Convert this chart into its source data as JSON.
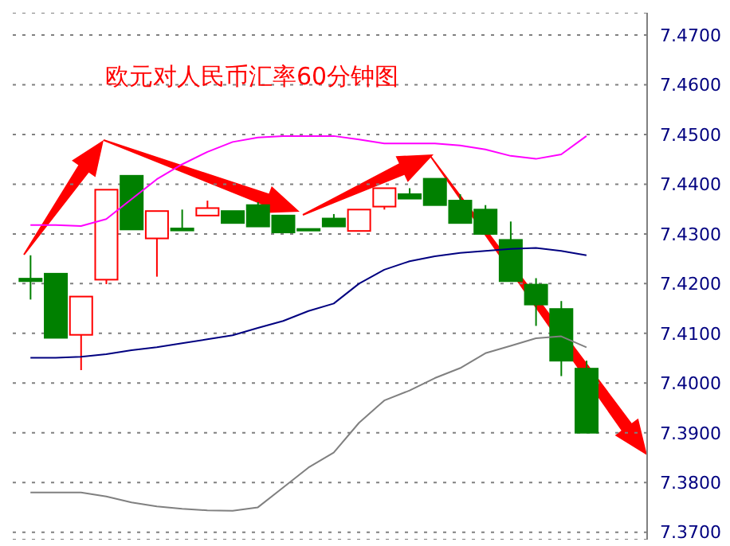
{
  "chart_data": {
    "type": "candlestick",
    "title": "欧元对人民币汇率60分钟图",
    "categories": [
      null,
      null,
      null,
      null,
      null,
      null,
      null,
      null,
      null,
      null,
      null,
      null,
      null,
      null,
      null,
      null,
      null,
      null,
      null,
      null,
      null,
      null,
      null
    ],
    "ohlc": [
      [
        7.421,
        7.4257,
        7.4168,
        7.4205
      ],
      [
        7.422,
        7.422,
        7.4091,
        7.4091
      ],
      [
        7.4097,
        7.4174,
        7.4026,
        7.4174
      ],
      [
        7.4208,
        7.4389,
        7.4199,
        7.4389
      ],
      [
        7.4417,
        7.4417,
        7.4309,
        7.4309
      ],
      [
        7.4291,
        7.4346,
        7.4214,
        7.4346
      ],
      [
        7.4311,
        7.4349,
        7.4307,
        7.4307
      ],
      [
        7.4337,
        7.4367,
        7.4337,
        7.4352
      ],
      [
        7.4346,
        7.4346,
        7.4322,
        7.4322
      ],
      [
        7.4358,
        7.4364,
        7.4315,
        7.4315
      ],
      [
        7.4337,
        7.4337,
        7.4303,
        7.4303
      ],
      [
        7.431,
        7.431,
        7.4308,
        7.4308
      ],
      [
        7.4331,
        7.434,
        7.4315,
        7.4315
      ],
      [
        7.4306,
        7.4349,
        7.4306,
        7.4349
      ],
      [
        7.4355,
        7.4392,
        7.4349,
        7.4392
      ],
      [
        7.438,
        7.4392,
        7.4371,
        7.4371
      ],
      [
        7.4411,
        7.4411,
        7.4358,
        7.4358
      ],
      [
        7.4367,
        7.438,
        7.4322,
        7.4322
      ],
      [
        7.4349,
        7.4358,
        7.43,
        7.43
      ],
      [
        7.4288,
        7.4325,
        7.4205,
        7.4205
      ],
      [
        7.4198,
        7.4211,
        7.4115,
        7.4158
      ],
      [
        7.4149,
        7.4165,
        7.4014,
        7.4045
      ],
      [
        7.4029,
        7.4045,
        7.39,
        7.39
      ]
    ],
    "colors": [
      "#008000",
      "#008000",
      "#ff0000",
      "#ff0000",
      "#008000",
      "#ff0000",
      "#008000",
      "#ff0000",
      "#008000",
      "#008000",
      "#008000",
      "#008000",
      "#008000",
      "#ff0000",
      "#ff0000",
      "#008000",
      "#008000",
      "#008000",
      "#008000",
      "#008000",
      "#008000",
      "#008000",
      "#008000"
    ],
    "series": [
      {
        "type": "line",
        "color": "#ff00ff",
        "values": [
          7.4318,
          7.4318,
          7.4316,
          7.433,
          7.437,
          7.441,
          7.444,
          7.4465,
          7.4485,
          7.4494,
          7.4497,
          7.4497,
          7.4497,
          7.449,
          7.4482,
          7.4482,
          7.4482,
          7.4478,
          7.447,
          7.4457,
          7.4451,
          7.446,
          7.4497
        ]
      },
      {
        "type": "line",
        "color": "#000080",
        "values": [
          7.4051,
          7.4051,
          7.4053,
          7.4058,
          7.4066,
          7.4072,
          7.408,
          7.4088,
          7.4096,
          7.4111,
          7.4125,
          7.4145,
          7.416,
          7.42,
          7.4228,
          7.4245,
          7.4255,
          7.4262,
          7.4266,
          7.427,
          7.4272,
          7.4266,
          7.4257
        ]
      },
      {
        "type": "line",
        "color": "#808080",
        "values": [
          7.378,
          7.378,
          7.378,
          7.3772,
          7.376,
          7.3752,
          7.3747,
          7.3744,
          7.3743,
          7.375,
          7.379,
          7.383,
          7.386,
          7.392,
          7.3965,
          7.3985,
          7.401,
          7.403,
          7.406,
          7.4075,
          7.409,
          7.4094,
          7.4072
        ]
      }
    ],
    "ylim": [
      7.3685,
      7.4745
    ],
    "yticks": [
      {
        "value": 7.37,
        "label": "7.3700"
      },
      {
        "value": 7.38,
        "label": "7.3800"
      },
      {
        "value": 7.39,
        "label": "7.3900"
      },
      {
        "value": 7.4,
        "label": "7.4000"
      },
      {
        "value": 7.41,
        "label": "7.4100"
      },
      {
        "value": 7.42,
        "label": "7.4200"
      },
      {
        "value": 7.43,
        "label": "7.4300"
      },
      {
        "value": 7.44,
        "label": "7.4400"
      },
      {
        "value": 7.45,
        "label": "7.4500"
      },
      {
        "value": 7.46,
        "label": "7.4600"
      },
      {
        "value": 7.47,
        "label": "7.4700"
      }
    ],
    "grid": "y",
    "tick_labels": "y"
  }
}
